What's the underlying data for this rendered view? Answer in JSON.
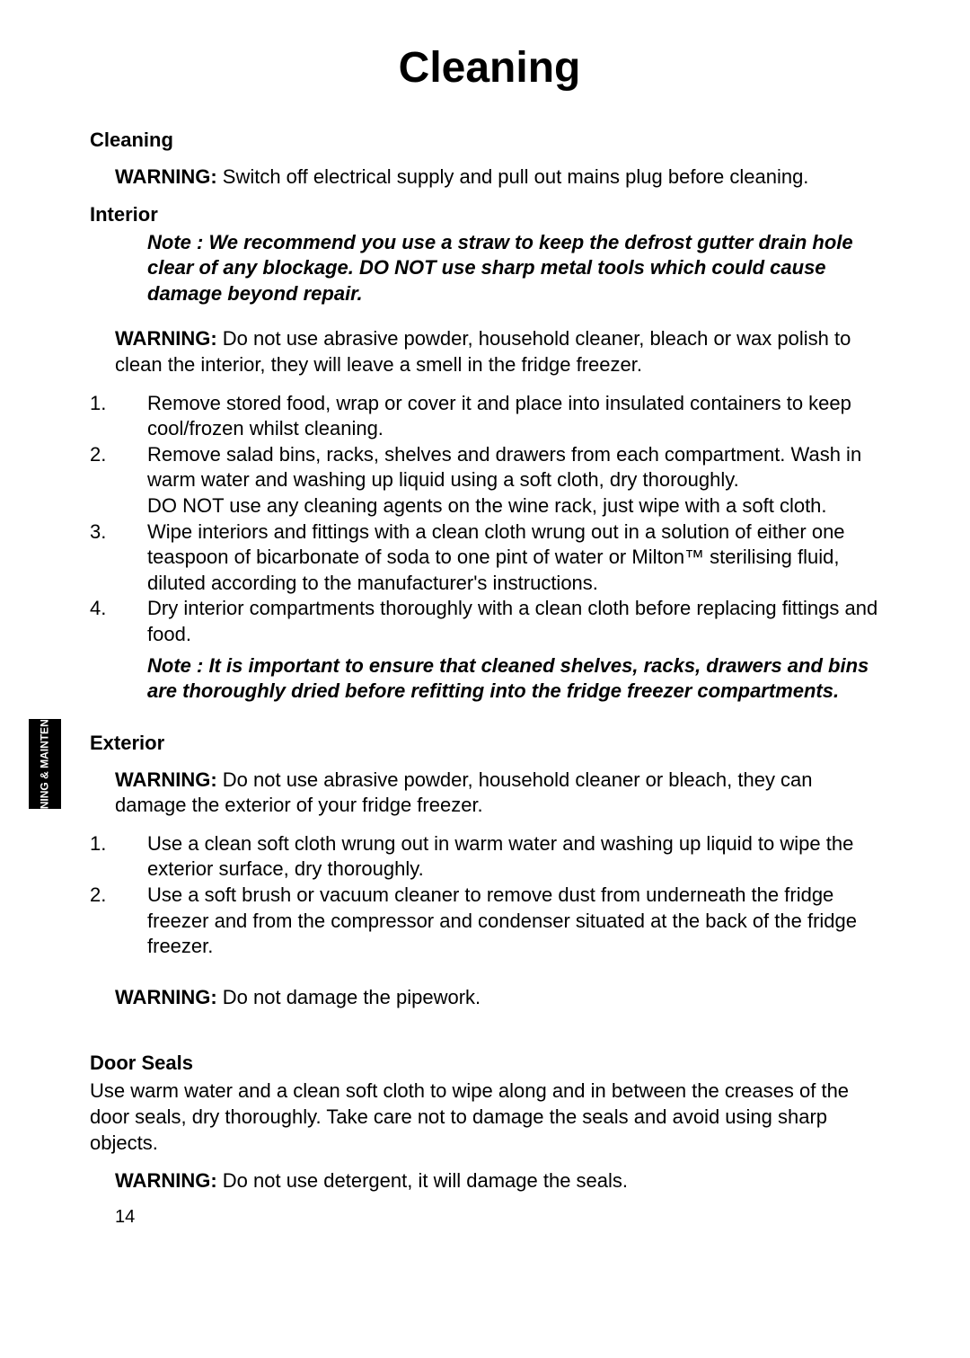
{
  "page_title": "Cleaning",
  "side_tab": "CLEANING & MAINTENANCE",
  "page_number": "14",
  "sections": {
    "cleaning": {
      "heading": "Cleaning",
      "warning_label": "WARNING:",
      "warning_text": " Switch off electrical supply and pull out mains plug before cleaning."
    },
    "interior": {
      "heading": "Interior",
      "note": "Note : We recommend you use a straw to keep the defrost gutter drain hole clear of any blockage. DO NOT use sharp metal tools which could cause damage beyond repair.",
      "warning_label": "WARNING:",
      "warning_text": " Do not use abrasive powder, household cleaner, bleach or wax polish to clean the interior, they will leave a smell in the fridge freezer.",
      "items": [
        "Remove stored food, wrap or cover it and place into insulated containers to keep cool/frozen whilst cleaning.",
        "Remove salad bins, racks, shelves and drawers from each compartment. Wash in warm water and washing up liquid using a soft cloth, dry thoroughly.\nDO NOT use any cleaning agents on the wine rack, just wipe with a soft cloth.",
        "Wipe interiors and fittings with a clean cloth wrung out in a solution of either one teaspoon of bicarbonate of soda to one pint of water or Milton™ sterilising fluid, diluted according to the manufacturer's instructions.",
        "Dry interior compartments thoroughly with a clean cloth before replacing fittings and food."
      ],
      "note2": "Note : It is important to ensure that cleaned shelves, racks, drawers and bins are thoroughly dried before refitting into the fridge freezer compartments."
    },
    "exterior": {
      "heading": "Exterior",
      "warning_label": "WARNING:",
      "warning_text": " Do not use abrasive powder, household cleaner or bleach, they can damage the exterior of your fridge freezer.",
      "items": [
        "Use a clean soft cloth wrung out in warm water and washing up liquid to wipe the exterior surface, dry thoroughly.",
        "Use a soft brush or vacuum cleaner to remove dust from underneath the fridge freezer and from the compressor and condenser situated at the back of the fridge freezer."
      ],
      "warning2_label": "WARNING:",
      "warning2_text": " Do not damage the pipework."
    },
    "door_seals": {
      "heading": "Door Seals",
      "body": "Use warm water and a clean soft cloth to wipe along and in between the creases of the door seals, dry thoroughly.  Take care not to damage the seals and avoid using sharp objects.",
      "warning_label": "WARNING:",
      "warning_text": " Do not use detergent, it will damage the seals."
    }
  }
}
